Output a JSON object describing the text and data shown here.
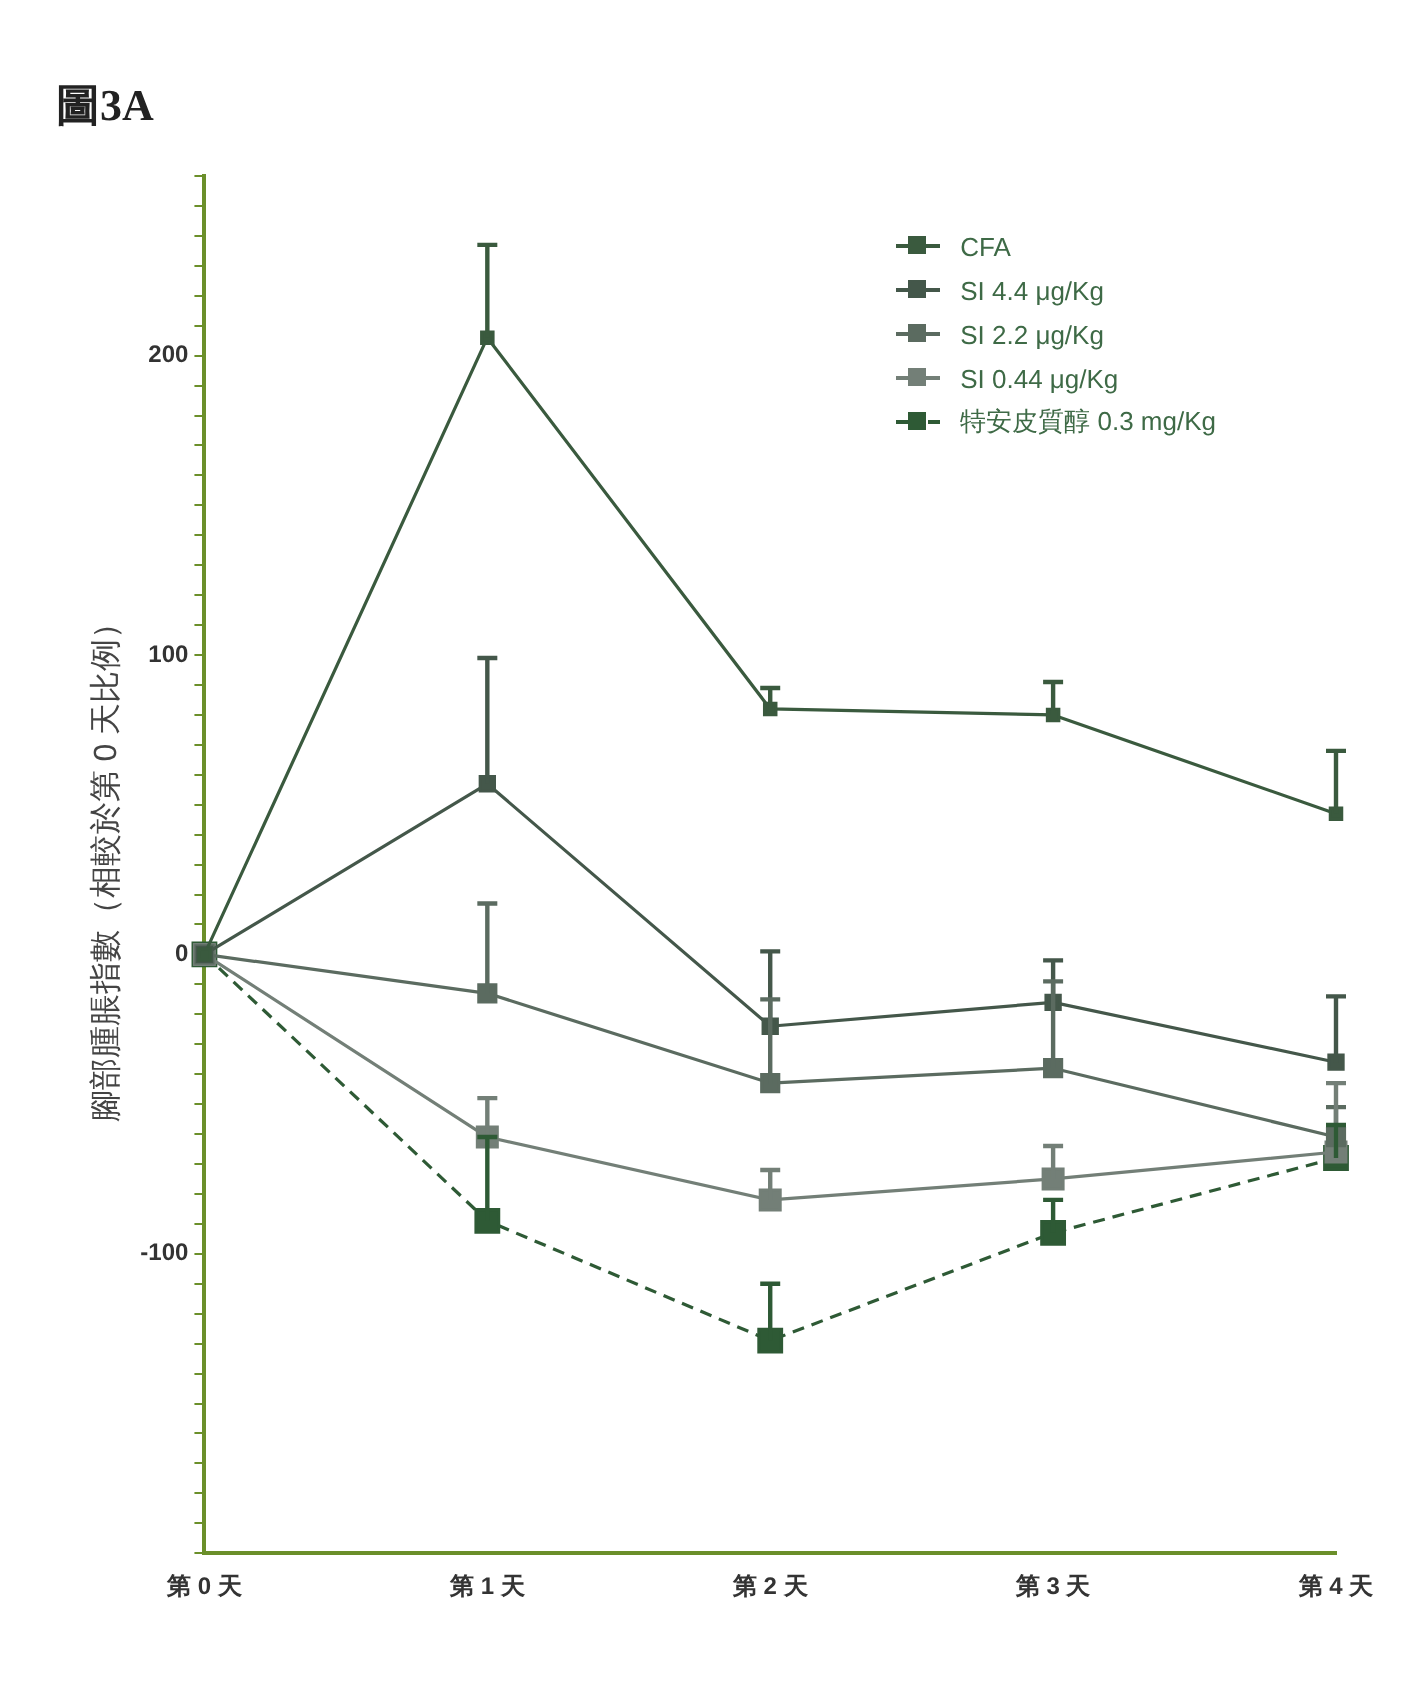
{
  "chart_data": {
    "type": "line",
    "title": "圖3A",
    "ylabel": "腳部腫脹指數（相較於第 0 天比例）",
    "categories": [
      "第 0 天",
      "第 1 天",
      "第 2 天",
      "第 3 天",
      "第 4 天"
    ],
    "ylim": [
      -200,
      260
    ],
    "yticks": [
      {
        "value": -200,
        "label": null
      },
      {
        "value": -190,
        "label": null
      },
      {
        "value": -180,
        "label": null
      },
      {
        "value": -170,
        "label": null
      },
      {
        "value": -160,
        "label": null
      },
      {
        "value": -150,
        "label": null
      },
      {
        "value": -140,
        "label": null
      },
      {
        "value": -130,
        "label": null
      },
      {
        "value": -120,
        "label": null
      },
      {
        "value": -110,
        "label": null
      },
      -100,
      {
        "value": -90,
        "label": null
      },
      {
        "value": -80,
        "label": null
      },
      {
        "value": -70,
        "label": null
      },
      {
        "value": -60,
        "label": null
      },
      {
        "value": -50,
        "label": null
      },
      {
        "value": -40,
        "label": null
      },
      {
        "value": -30,
        "label": null
      },
      {
        "value": -20,
        "label": null
      },
      {
        "value": -10,
        "label": null
      },
      0,
      {
        "value": 10,
        "label": null
      },
      {
        "value": 20,
        "label": null
      },
      {
        "value": 30,
        "label": null
      },
      {
        "value": 40,
        "label": null
      },
      {
        "value": 50,
        "label": null
      },
      {
        "value": 60,
        "label": null
      },
      {
        "value": 70,
        "label": null
      },
      {
        "value": 80,
        "label": null
      },
      {
        "value": 90,
        "label": null
      },
      100,
      {
        "value": 110,
        "label": null
      },
      {
        "value": 120,
        "label": null
      },
      {
        "value": 130,
        "label": null
      },
      {
        "value": 140,
        "label": null
      },
      {
        "value": 150,
        "label": null
      },
      {
        "value": 160,
        "label": null
      },
      {
        "value": 170,
        "label": null
      },
      {
        "value": 180,
        "label": null
      },
      {
        "value": 190,
        "label": null
      },
      200,
      {
        "value": 210,
        "label": null
      },
      {
        "value": 220,
        "label": null
      },
      {
        "value": 230,
        "label": null
      },
      {
        "value": 240,
        "label": null
      },
      {
        "value": 250,
        "label": null
      },
      {
        "value": 260,
        "label": null
      }
    ],
    "series": [
      {
        "name": "CFA",
        "color": "#3a5a3e",
        "values": [
          0,
          206,
          82,
          80,
          47
        ],
        "errors": [
          null,
          [
            206,
            237
          ],
          [
            82,
            89
          ],
          [
            80,
            91
          ],
          [
            47,
            68
          ]
        ]
      },
      {
        "name": "SI 4.4 μg/Kg",
        "color": "#44574a",
        "values": [
          0,
          57,
          -24,
          -16,
          -36
        ],
        "errors": [
          null,
          [
            57,
            99
          ],
          [
            -24,
            1
          ],
          [
            -16,
            -2
          ],
          [
            -36,
            -14
          ]
        ]
      },
      {
        "name": "SI 2.2 μg/Kg",
        "color": "#5b6b60",
        "values": [
          0,
          -13,
          -43,
          -38,
          -61
        ],
        "errors": [
          null,
          [
            -13,
            17
          ],
          [
            -43,
            -15
          ],
          [
            -38,
            -9
          ],
          [
            -61,
            -51
          ]
        ]
      },
      {
        "name": "SI 0.44 μg/Kg",
        "color": "#737f77",
        "values": [
          0,
          -61,
          -82,
          -75,
          -66
        ],
        "errors": [
          null,
          [
            -61,
            -48
          ],
          [
            -82,
            -72
          ],
          [
            -75,
            -64
          ],
          [
            -66,
            -43
          ]
        ]
      },
      {
        "name": "特安皮質醇 0.3 mg/Kg",
        "color": "#2e5a35",
        "line_style": "dashed",
        "values": [
          0,
          -89,
          -129,
          -93,
          -68
        ],
        "errors": [
          null,
          [
            -89,
            -61
          ],
          [
            -129,
            -110
          ],
          [
            -93,
            -82
          ],
          [
            -68,
            -57
          ]
        ]
      }
    ],
    "marker": "square",
    "legend": "top right",
    "grid": false
  }
}
